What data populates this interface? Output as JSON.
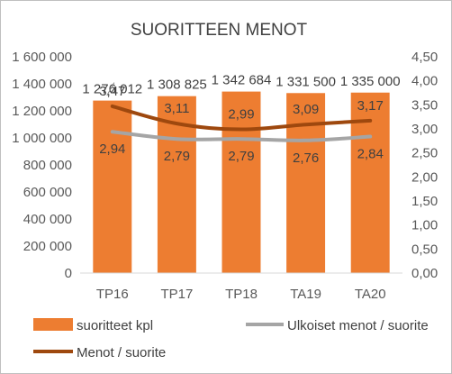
{
  "chart_data": {
    "type": "bar+line",
    "title": "SUORITTEEN MENOT",
    "categories": [
      "TP16",
      "TP17",
      "TP18",
      "TA19",
      "TA20"
    ],
    "y_left": {
      "min": 0,
      "max": 1600000,
      "step": 200000,
      "tick_labels": [
        "0",
        "200 000",
        "400 000",
        "600 000",
        "800 000",
        "1 000 000",
        "1 200 000",
        "1 400 000",
        "1 600 000"
      ]
    },
    "y_right": {
      "min": 0,
      "max": 4.5,
      "step": 0.5,
      "tick_labels": [
        "0,00",
        "0,50",
        "1,00",
        "1,50",
        "2,00",
        "2,50",
        "3,00",
        "3,50",
        "4,00",
        "4,50"
      ]
    },
    "grid": false,
    "legend_position": "bottom",
    "series": [
      {
        "name": "suoritteet kpl",
        "kind": "bar",
        "axis": "left",
        "color": "#ed7d31",
        "values": [
          1276012,
          1308825,
          1342684,
          1331500,
          1335000
        ],
        "labels": [
          "1 276 012",
          "1 308 825",
          "1 342 684",
          "1 331 500",
          "1 335 000"
        ]
      },
      {
        "name": "Ulkoiset menot / suorite",
        "kind": "line",
        "axis": "right",
        "color": "#a5a5a5",
        "values": [
          2.94,
          2.79,
          2.79,
          2.76,
          2.84
        ],
        "labels": [
          "2,94",
          "2,79",
          "2,79",
          "2,76",
          "2,84"
        ]
      },
      {
        "name": "Menot / suorite",
        "kind": "line",
        "axis": "right",
        "color": "#9e480e",
        "values": [
          3.47,
          3.11,
          2.99,
          3.09,
          3.17
        ],
        "labels": [
          "3,47",
          "3,11",
          "2,99",
          "3,09",
          "3,17"
        ]
      }
    ]
  }
}
